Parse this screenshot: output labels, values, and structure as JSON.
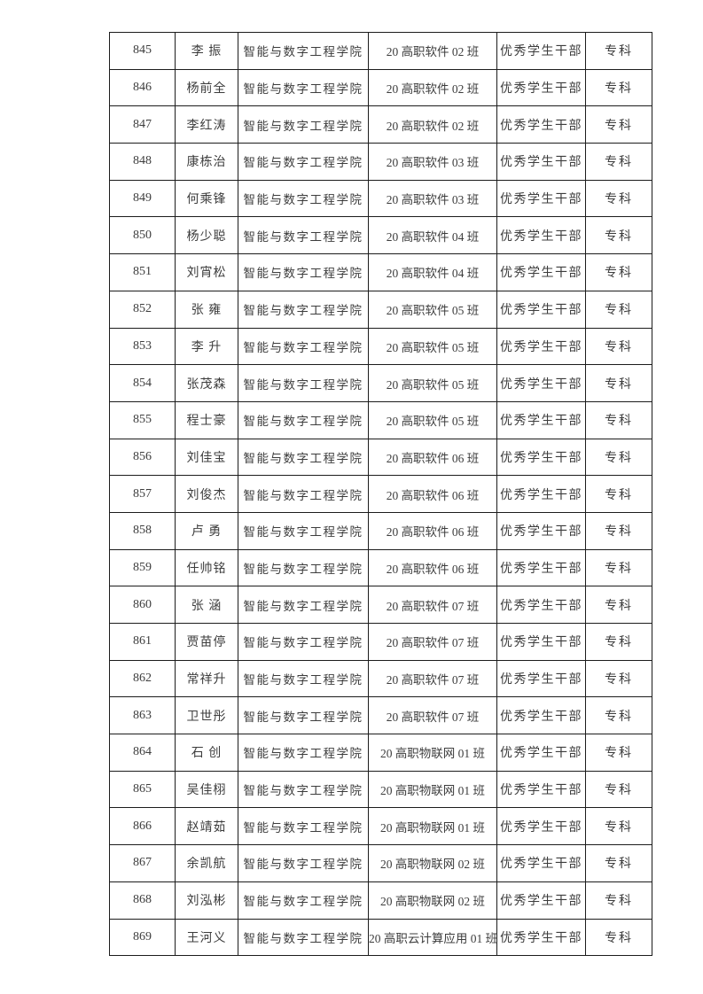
{
  "document": {
    "kind": "award-list-table-page",
    "colors": {
      "page_background": "#ffffff",
      "table_border": "#1c1c1c",
      "text": "#3d3d3d"
    },
    "table": {
      "rows": [
        {
          "no": "845",
          "name": "李 振",
          "college": "智能与数字工程学院",
          "class": "20 高职软件 02 班",
          "award": "优秀学生干部",
          "level": "专科"
        },
        {
          "no": "846",
          "name": "杨前全",
          "college": "智能与数字工程学院",
          "class": "20 高职软件 02 班",
          "award": "优秀学生干部",
          "level": "专科"
        },
        {
          "no": "847",
          "name": "李红涛",
          "college": "智能与数字工程学院",
          "class": "20 高职软件 02 班",
          "award": "优秀学生干部",
          "level": "专科"
        },
        {
          "no": "848",
          "name": "康栋治",
          "college": "智能与数字工程学院",
          "class": "20 高职软件 03 班",
          "award": "优秀学生干部",
          "level": "专科"
        },
        {
          "no": "849",
          "name": "何乘锋",
          "college": "智能与数字工程学院",
          "class": "20 高职软件 03 班",
          "award": "优秀学生干部",
          "level": "专科"
        },
        {
          "no": "850",
          "name": "杨少聪",
          "college": "智能与数字工程学院",
          "class": "20 高职软件 04 班",
          "award": "优秀学生干部",
          "level": "专科"
        },
        {
          "no": "851",
          "name": "刘宵松",
          "college": "智能与数字工程学院",
          "class": "20 高职软件 04 班",
          "award": "优秀学生干部",
          "level": "专科"
        },
        {
          "no": "852",
          "name": "张 雍",
          "college": "智能与数字工程学院",
          "class": "20 高职软件 05 班",
          "award": "优秀学生干部",
          "level": "专科"
        },
        {
          "no": "853",
          "name": "李 升",
          "college": "智能与数字工程学院",
          "class": "20 高职软件 05 班",
          "award": "优秀学生干部",
          "level": "专科"
        },
        {
          "no": "854",
          "name": "张茂森",
          "college": "智能与数字工程学院",
          "class": "20 高职软件 05 班",
          "award": "优秀学生干部",
          "level": "专科"
        },
        {
          "no": "855",
          "name": "程士豪",
          "college": "智能与数字工程学院",
          "class": "20 高职软件 05 班",
          "award": "优秀学生干部",
          "level": "专科"
        },
        {
          "no": "856",
          "name": "刘佳宝",
          "college": "智能与数字工程学院",
          "class": "20 高职软件 06 班",
          "award": "优秀学生干部",
          "level": "专科"
        },
        {
          "no": "857",
          "name": "刘俊杰",
          "college": "智能与数字工程学院",
          "class": "20 高职软件 06 班",
          "award": "优秀学生干部",
          "level": "专科"
        },
        {
          "no": "858",
          "name": "卢 勇",
          "college": "智能与数字工程学院",
          "class": "20 高职软件 06 班",
          "award": "优秀学生干部",
          "level": "专科"
        },
        {
          "no": "859",
          "name": "任帅铭",
          "college": "智能与数字工程学院",
          "class": "20 高职软件 06 班",
          "award": "优秀学生干部",
          "level": "专科"
        },
        {
          "no": "860",
          "name": "张 涵",
          "college": "智能与数字工程学院",
          "class": "20 高职软件 07 班",
          "award": "优秀学生干部",
          "level": "专科"
        },
        {
          "no": "861",
          "name": "贾苗停",
          "college": "智能与数字工程学院",
          "class": "20 高职软件 07 班",
          "award": "优秀学生干部",
          "level": "专科"
        },
        {
          "no": "862",
          "name": "常祥升",
          "college": "智能与数字工程学院",
          "class": "20 高职软件 07 班",
          "award": "优秀学生干部",
          "level": "专科"
        },
        {
          "no": "863",
          "name": "卫世彤",
          "college": "智能与数字工程学院",
          "class": "20 高职软件 07 班",
          "award": "优秀学生干部",
          "level": "专科"
        },
        {
          "no": "864",
          "name": "石 创",
          "college": "智能与数字工程学院",
          "class": "20 高职物联网 01 班",
          "award": "优秀学生干部",
          "level": "专科"
        },
        {
          "no": "865",
          "name": "吴佳栩",
          "college": "智能与数字工程学院",
          "class": "20 高职物联网 01 班",
          "award": "优秀学生干部",
          "level": "专科"
        },
        {
          "no": "866",
          "name": "赵靖茹",
          "college": "智能与数字工程学院",
          "class": "20 高职物联网 01 班",
          "award": "优秀学生干部",
          "level": "专科"
        },
        {
          "no": "867",
          "name": "余凯航",
          "college": "智能与数字工程学院",
          "class": "20 高职物联网 02 班",
          "award": "优秀学生干部",
          "level": "专科"
        },
        {
          "no": "868",
          "name": "刘泓彬",
          "college": "智能与数字工程学院",
          "class": "20 高职物联网 02 班",
          "award": "优秀学生干部",
          "level": "专科"
        },
        {
          "no": "869",
          "name": "王河义",
          "college": "智能与数字工程学院",
          "class": "20 高职云计算应用 01 班",
          "award": "优秀学生干部",
          "level": "专科"
        }
      ]
    }
  }
}
